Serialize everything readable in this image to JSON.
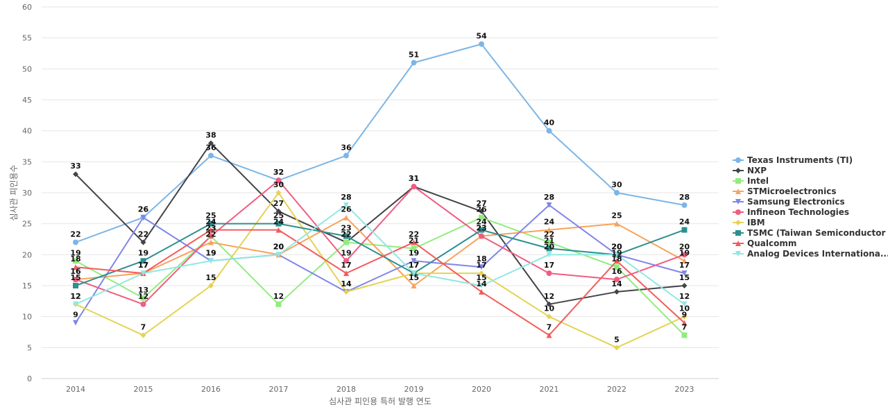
{
  "chart_data": {
    "type": "line",
    "xlabel": "심사관 피인용 특허 발행 연도",
    "ylabel": "심사관 피인용수",
    "ylim": [
      0,
      60
    ],
    "yticks": [
      0,
      5,
      10,
      15,
      20,
      25,
      30,
      35,
      40,
      45,
      50,
      55,
      60
    ],
    "grid": true,
    "legend": "right",
    "categories": [
      "2014",
      "2015",
      "2016",
      "2017",
      "2018",
      "2019",
      "2020",
      "2021",
      "2022",
      "2023"
    ],
    "series": [
      {
        "name": "Texas Instruments (TI)",
        "color": "#7cb5e6",
        "marker": "circle",
        "values": [
          22,
          26,
          36,
          32,
          36,
          51,
          54,
          40,
          30,
          28
        ]
      },
      {
        "name": "NXP",
        "color": "#434348",
        "marker": "diamond",
        "values": [
          33,
          22,
          38,
          27,
          22,
          31,
          27,
          12,
          14,
          15
        ]
      },
      {
        "name": "Intel",
        "color": "#90ed7d",
        "marker": "square",
        "values": [
          19,
          13,
          23,
          12,
          22,
          21,
          26,
          22,
          18,
          7
        ]
      },
      {
        "name": "STMicroelectronics",
        "color": "#f7a35c",
        "marker": "triangle",
        "values": [
          16,
          17,
          22,
          20,
          26,
          15,
          23,
          24,
          25,
          19
        ]
      },
      {
        "name": "Samsung Electronics",
        "color": "#8085e9",
        "marker": "triangle-down",
        "values": [
          9,
          26,
          19,
          20,
          14,
          19,
          18,
          28,
          20,
          17
        ]
      },
      {
        "name": "Infineon Technologies",
        "color": "#f15c80",
        "marker": "circle",
        "values": [
          16,
          12,
          23,
          32,
          19,
          31,
          23,
          17,
          16,
          20
        ]
      },
      {
        "name": "IBM",
        "color": "#e4d354",
        "marker": "diamond",
        "values": [
          12,
          7,
          15,
          30,
          14,
          17,
          17,
          10,
          5,
          10
        ]
      },
      {
        "name": "TSMC (Taiwan Semiconductor ...",
        "color": "#2b908f",
        "marker": "square",
        "values": [
          15,
          19,
          25,
          25,
          23,
          17,
          24,
          21,
          20,
          24
        ]
      },
      {
        "name": "Qualcomm",
        "color": "#f45b5b",
        "marker": "triangle",
        "values": [
          18,
          17,
          24,
          24,
          17,
          22,
          14,
          7,
          19,
          9
        ]
      },
      {
        "name": "Analog Devices Internationa...",
        "color": "#91e8e1",
        "marker": "triangle-down",
        "values": [
          12,
          17,
          19,
          20,
          28,
          17,
          15,
          20,
          20,
          12
        ]
      }
    ]
  }
}
